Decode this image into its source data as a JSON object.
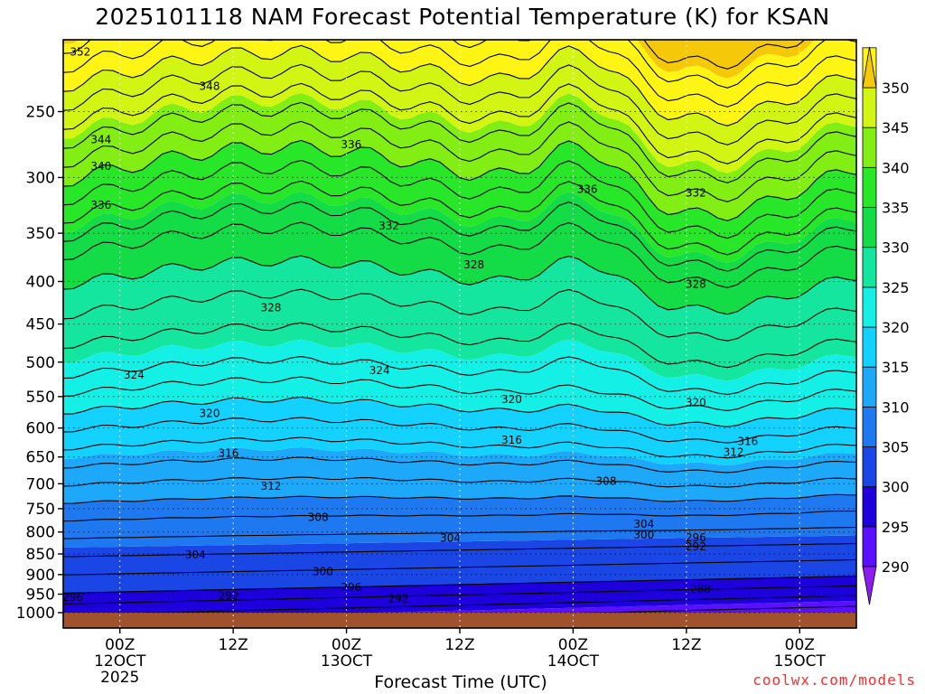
{
  "chart_data": {
    "type": "heatmap",
    "title": "2025101118 NAM Forecast Potential Temperature (K) for KSAN",
    "xlabel": "Forecast Time (UTC)",
    "ylabel": "",
    "y_ticks": [
      250,
      300,
      350,
      400,
      450,
      500,
      550,
      600,
      650,
      700,
      750,
      800,
      850,
      900,
      950,
      1000
    ],
    "ylim": [
      1000,
      200
    ],
    "x_ticks": [
      {
        "label": "00Z",
        "sub": "12OCT",
        "year": "2025"
      },
      {
        "label": "12Z",
        "sub": "",
        "year": ""
      },
      {
        "label": "00Z",
        "sub": "13OCT",
        "year": ""
      },
      {
        "label": "12Z",
        "sub": "",
        "year": ""
      },
      {
        "label": "00Z",
        "sub": "14OCT",
        "year": ""
      },
      {
        "label": "12Z",
        "sub": "",
        "year": ""
      },
      {
        "label": "00Z",
        "sub": "15OCT",
        "year": ""
      }
    ],
    "x_hours": [
      0,
      12,
      24,
      36,
      48,
      60,
      72
    ],
    "xlim": [
      -6,
      78
    ],
    "colorbar": {
      "ticks": [
        290,
        295,
        300,
        305,
        310,
        315,
        320,
        325,
        330,
        335,
        340,
        345,
        350
      ],
      "colors": [
        "#8c1cf0",
        "#5a10ff",
        "#1e00dc",
        "#1a46e6",
        "#1e78f0",
        "#1ea8fa",
        "#14d2ff",
        "#14f0e6",
        "#14e6a0",
        "#14dc46",
        "#28e628",
        "#82ee14",
        "#d2f514",
        "#fff514",
        "#f5c80a"
      ]
    },
    "contour_labels": [
      {
        "text": "352",
        "t": -4.2,
        "p": 212
      },
      {
        "text": "348",
        "t": 9.5,
        "p": 233
      },
      {
        "text": "344",
        "t": -2.0,
        "p": 270
      },
      {
        "text": "340",
        "t": -2.0,
        "p": 291
      },
      {
        "text": "336",
        "t": -2.0,
        "p": 324
      },
      {
        "text": "336",
        "t": 24.5,
        "p": 274
      },
      {
        "text": "336",
        "t": 49.5,
        "p": 310
      },
      {
        "text": "332",
        "t": 28.5,
        "p": 343
      },
      {
        "text": "332",
        "t": 61.0,
        "p": 313
      },
      {
        "text": "328",
        "t": 37.5,
        "p": 382
      },
      {
        "text": "328",
        "t": 16.0,
        "p": 430
      },
      {
        "text": "328",
        "t": 61.0,
        "p": 403
      },
      {
        "text": "324",
        "t": 1.5,
        "p": 518
      },
      {
        "text": "324",
        "t": 27.5,
        "p": 512
      },
      {
        "text": "320",
        "t": 9.5,
        "p": 576
      },
      {
        "text": "320",
        "t": 41.5,
        "p": 554
      },
      {
        "text": "320",
        "t": 61.0,
        "p": 559
      },
      {
        "text": "316",
        "t": 11.5,
        "p": 643
      },
      {
        "text": "316",
        "t": 41.5,
        "p": 620
      },
      {
        "text": "316",
        "t": 66.5,
        "p": 623
      },
      {
        "text": "312",
        "t": 16.0,
        "p": 705
      },
      {
        "text": "312",
        "t": 65.0,
        "p": 642
      },
      {
        "text": "308",
        "t": 21.0,
        "p": 768
      },
      {
        "text": "308",
        "t": 51.5,
        "p": 695
      },
      {
        "text": "304",
        "t": 8.0,
        "p": 852
      },
      {
        "text": "304",
        "t": 35.0,
        "p": 814
      },
      {
        "text": "304",
        "t": 55.5,
        "p": 783
      },
      {
        "text": "300",
        "t": 21.5,
        "p": 893
      },
      {
        "text": "300",
        "t": 55.5,
        "p": 807
      },
      {
        "text": "296",
        "t": -5.0,
        "p": 958
      },
      {
        "text": "296",
        "t": 24.5,
        "p": 932
      },
      {
        "text": "296",
        "t": 61.0,
        "p": 813
      },
      {
        "text": "292",
        "t": 11.5,
        "p": 955
      },
      {
        "text": "292",
        "t": 29.5,
        "p": 962
      },
      {
        "text": "292",
        "t": 61.0,
        "p": 833
      },
      {
        "text": "288",
        "t": 61.5,
        "p": 937
      }
    ],
    "grid": true,
    "legend": "colorbar-right"
  },
  "credit": "coolwx.com/models"
}
